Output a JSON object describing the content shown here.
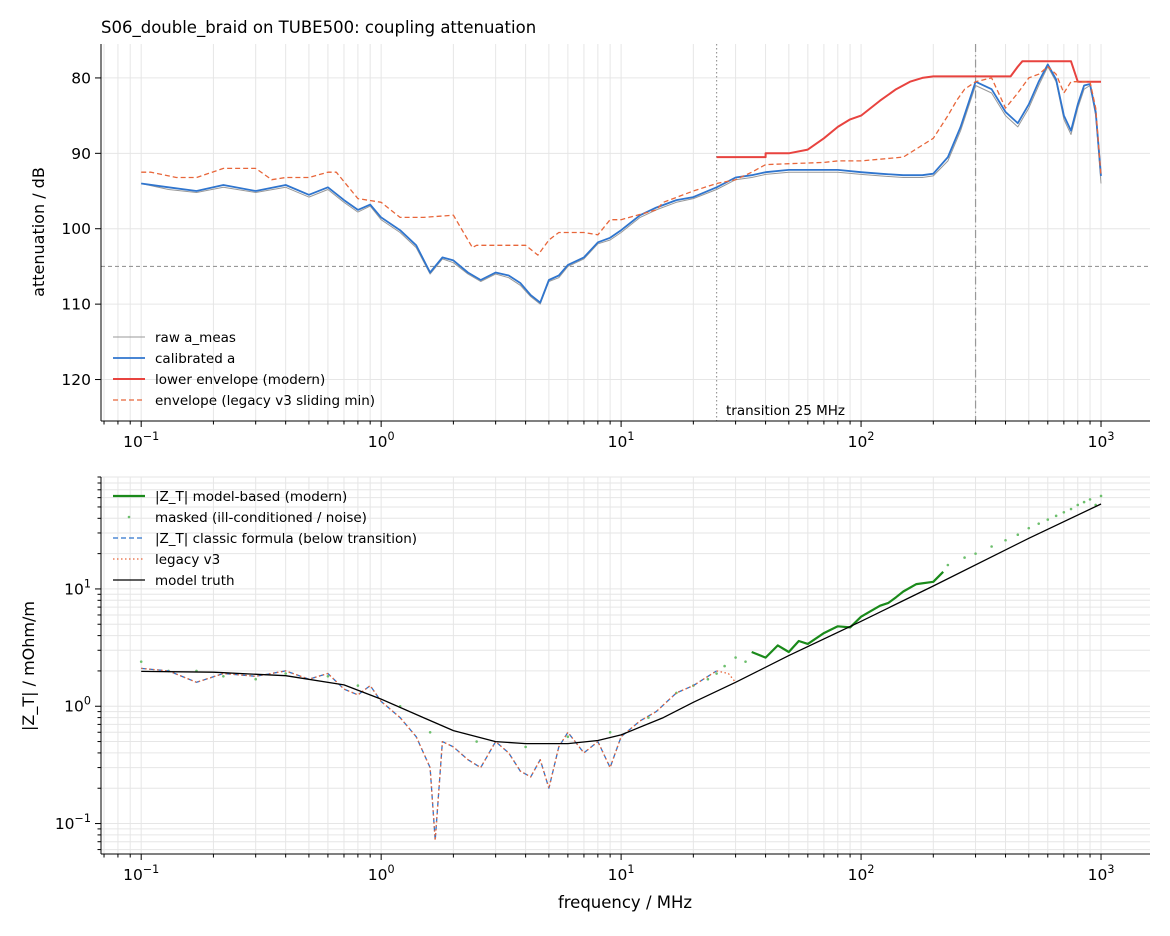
{
  "figure": {
    "title": "S06_double_braid on TUBE500: coupling attenuation",
    "xlabel": "frequency / MHz"
  },
  "chart_data": [
    {
      "type": "line",
      "title": "S06_double_braid on TUBE500: coupling attenuation",
      "xlabel": "",
      "ylabel": "attenuation / dB",
      "x_scale": "log",
      "xlim": [
        0.068,
        1600
      ],
      "ylim": [
        125.5,
        75.5
      ],
      "y_inverted": true,
      "x_ticks": [
        0.1,
        1,
        10,
        100,
        1000
      ],
      "x_tick_labels": [
        [
          "10",
          "−1"
        ],
        [
          "10",
          "0"
        ],
        [
          "10",
          "1"
        ],
        [
          "10",
          "2"
        ],
        [
          "10",
          "3"
        ]
      ],
      "y_ticks": [
        80,
        90,
        100,
        110,
        120
      ],
      "y_tick_labels": [
        "80",
        "90",
        "100",
        "110",
        "120"
      ],
      "grid": true,
      "legend_position": "lower-left",
      "reference_lines": [
        {
          "orientation": "horizontal",
          "value": 105,
          "style": "dashed",
          "color": "#999999"
        },
        {
          "orientation": "vertical",
          "value": 25,
          "style": "dotted",
          "color": "#999999",
          "label": "transition 25 MHz"
        },
        {
          "orientation": "vertical",
          "value": 300,
          "style": "dashdot",
          "color": "#999999"
        }
      ],
      "series": [
        {
          "name": "raw a_meas",
          "color": "#999999",
          "style": "solid",
          "width": 1,
          "x": [
            0.1,
            0.13,
            0.17,
            0.22,
            0.3,
            0.4,
            0.5,
            0.6,
            0.7,
            0.8,
            0.9,
            1.0,
            1.2,
            1.4,
            1.6,
            1.8,
            2.0,
            2.3,
            2.6,
            3.0,
            3.4,
            3.8,
            4.2,
            4.6,
            5.0,
            5.5,
            6.0,
            7.0,
            8.0,
            9.0,
            10,
            12,
            14,
            17,
            20,
            25,
            30,
            35,
            40,
            50,
            60,
            70,
            80,
            100,
            120,
            150,
            180,
            200,
            230,
            260,
            300,
            350,
            400,
            450,
            500,
            550,
            600,
            650,
            700,
            750,
            800,
            850,
            900,
            950,
            1000
          ],
          "y": [
            94.0,
            94.8,
            95.2,
            94.5,
            95.2,
            94.5,
            95.8,
            94.8,
            96.5,
            97.8,
            97.0,
            98.8,
            100.5,
            102.5,
            106.0,
            104.0,
            104.5,
            106.0,
            107.0,
            106.0,
            106.5,
            107.5,
            109.0,
            110.0,
            107.0,
            106.5,
            105.0,
            104.0,
            102.0,
            101.5,
            100.5,
            98.5,
            97.5,
            96.5,
            96.0,
            94.8,
            93.5,
            93.2,
            92.8,
            92.5,
            92.5,
            92.5,
            92.5,
            92.8,
            93.0,
            93.2,
            93.2,
            93.0,
            91.0,
            87.0,
            81.0,
            82.0,
            85.0,
            86.5,
            84.0,
            81.0,
            78.5,
            80.5,
            85.5,
            87.5,
            84.0,
            81.5,
            81.0,
            85.0,
            94.0
          ]
        },
        {
          "name": "calibrated a",
          "color": "#2f75ce",
          "style": "solid",
          "width": 1.8,
          "x": [
            0.1,
            0.13,
            0.17,
            0.22,
            0.3,
            0.4,
            0.5,
            0.6,
            0.7,
            0.8,
            0.9,
            1.0,
            1.2,
            1.4,
            1.6,
            1.8,
            2.0,
            2.3,
            2.6,
            3.0,
            3.4,
            3.8,
            4.2,
            4.6,
            5.0,
            5.5,
            6.0,
            7.0,
            8.0,
            9.0,
            10,
            12,
            14,
            17,
            20,
            25,
            30,
            35,
            40,
            50,
            60,
            70,
            80,
            100,
            120,
            150,
            180,
            200,
            230,
            260,
            300,
            350,
            400,
            450,
            500,
            550,
            600,
            650,
            700,
            750,
            800,
            850,
            900,
            950,
            1000
          ],
          "y": [
            94.0,
            94.5,
            95.0,
            94.2,
            95.0,
            94.2,
            95.5,
            94.5,
            96.2,
            97.5,
            96.8,
            98.5,
            100.2,
            102.2,
            105.8,
            103.8,
            104.2,
            105.8,
            106.8,
            105.8,
            106.2,
            107.2,
            108.8,
            109.8,
            106.8,
            106.2,
            104.8,
            103.8,
            101.8,
            101.2,
            100.2,
            98.2,
            97.2,
            96.2,
            95.8,
            94.5,
            93.2,
            92.9,
            92.5,
            92.2,
            92.2,
            92.2,
            92.2,
            92.5,
            92.7,
            92.9,
            92.9,
            92.7,
            90.5,
            86.5,
            80.5,
            81.5,
            84.5,
            86.0,
            83.5,
            80.5,
            78.2,
            80.2,
            85.0,
            87.0,
            83.5,
            81.0,
            80.8,
            84.5,
            93.0
          ]
        },
        {
          "name": "lower envelope (modern)",
          "color": "#e8433f",
          "style": "solid",
          "width": 2,
          "x": [
            25,
            40,
            40,
            50,
            60,
            70,
            80,
            90,
            100,
            120,
            140,
            160,
            180,
            200,
            300,
            420,
            450,
            470,
            500,
            550,
            600,
            700,
            750,
            800,
            1000
          ],
          "y": [
            90.5,
            90.5,
            90.0,
            90.0,
            89.5,
            88.0,
            86.5,
            85.5,
            85.0,
            83.0,
            81.5,
            80.5,
            80.0,
            79.8,
            79.8,
            79.8,
            78.5,
            77.8,
            77.8,
            77.8,
            77.8,
            77.8,
            77.8,
            80.5,
            80.5
          ]
        },
        {
          "name": "envelope (legacy v3 sliding min)",
          "color": "#e8663a",
          "style": "dashed",
          "width": 1.3,
          "x": [
            0.1,
            0.11,
            0.14,
            0.17,
            0.22,
            0.3,
            0.35,
            0.4,
            0.5,
            0.6,
            0.65,
            0.8,
            1.0,
            1.2,
            1.3,
            1.5,
            2.0,
            2.4,
            2.5,
            3.0,
            4.0,
            4.5,
            5.0,
            5.5,
            7.0,
            8.0,
            9.0,
            10,
            14,
            15,
            20,
            25,
            30,
            35,
            40,
            70,
            80,
            100,
            150,
            200,
            230,
            250,
            270,
            300,
            350,
            400,
            450,
            500,
            550,
            600,
            650,
            700,
            750,
            800,
            900,
            950,
            1000
          ],
          "y": [
            92.5,
            92.5,
            93.2,
            93.2,
            92.0,
            92.0,
            93.5,
            93.2,
            93.2,
            92.5,
            92.5,
            96.0,
            96.5,
            98.5,
            98.5,
            98.5,
            98.2,
            102.5,
            102.2,
            102.2,
            102.2,
            103.5,
            101.5,
            100.5,
            100.5,
            100.8,
            98.8,
            98.8,
            97.5,
            96.5,
            95.0,
            94.0,
            93.5,
            92.5,
            91.5,
            91.2,
            91.0,
            91.0,
            90.5,
            88.0,
            85.0,
            83.0,
            81.5,
            80.5,
            80.0,
            84.0,
            82.0,
            80.0,
            79.5,
            78.5,
            79.5,
            82.0,
            80.5,
            80.5,
            80.5,
            84.0,
            93.0
          ]
        }
      ]
    },
    {
      "type": "line",
      "title": "",
      "xlabel": "frequency / MHz",
      "ylabel": "|Z_T| / mOhm/m",
      "x_scale": "log",
      "y_scale": "log",
      "xlim": [
        0.068,
        1600
      ],
      "ylim": [
        0.055,
        90
      ],
      "x_ticks": [
        0.1,
        1,
        10,
        100,
        1000
      ],
      "x_tick_labels": [
        [
          "10",
          "−1"
        ],
        [
          "10",
          "0"
        ],
        [
          "10",
          "1"
        ],
        [
          "10",
          "2"
        ],
        [
          "10",
          "3"
        ]
      ],
      "y_ticks": [
        0.1,
        1,
        10
      ],
      "y_tick_labels": [
        [
          "10",
          "−1"
        ],
        [
          "10",
          "0"
        ],
        [
          "10",
          "1"
        ]
      ],
      "grid": true,
      "legend_position": "top-left",
      "series": [
        {
          "name": "|Z_T| model-based (modern)",
          "color": "#1a8a1a",
          "style": "solid",
          "width": 2.2,
          "x": [
            35,
            40,
            45,
            50,
            55,
            60,
            70,
            80,
            90,
            100,
            110,
            120,
            130,
            140,
            150,
            170,
            200,
            220
          ],
          "y": [
            2.9,
            2.6,
            3.3,
            2.9,
            3.6,
            3.4,
            4.2,
            4.8,
            4.7,
            5.8,
            6.5,
            7.2,
            7.6,
            8.5,
            9.5,
            11.0,
            11.5,
            14.0
          ]
        },
        {
          "name": "masked (ill-conditioned / noise)",
          "color": "#6dbf6d",
          "style": "dots",
          "width": 0,
          "x": [
            0.1,
            0.13,
            0.17,
            0.22,
            0.3,
            0.4,
            0.6,
            0.8,
            1.2,
            1.6,
            2.5,
            4.0,
            6.0,
            9.0,
            13,
            17,
            20,
            23,
            25,
            27,
            30,
            33,
            230,
            270,
            300,
            350,
            400,
            450,
            500,
            550,
            600,
            650,
            700,
            750,
            800,
            850,
            900,
            950,
            1000
          ],
          "y": [
            2.4,
            2.0,
            2.0,
            1.8,
            1.7,
            1.9,
            1.8,
            1.5,
            1.0,
            0.6,
            0.5,
            0.45,
            0.55,
            0.6,
            0.8,
            1.3,
            1.5,
            1.7,
            1.9,
            2.2,
            2.6,
            2.4,
            16.0,
            18.5,
            20.0,
            23.0,
            26.0,
            29.0,
            33.0,
            36.0,
            39.0,
            42.0,
            45.0,
            48.0,
            52.0,
            55.0,
            58.0,
            52.0,
            62.0
          ]
        },
        {
          "name": "|Z_T| classic formula (below transition)",
          "color": "#2f75ce",
          "style": "dashed",
          "width": 1.3,
          "x": [
            0.1,
            0.13,
            0.17,
            0.22,
            0.3,
            0.4,
            0.5,
            0.6,
            0.7,
            0.8,
            0.9,
            1.0,
            1.2,
            1.4,
            1.6,
            1.68,
            1.8,
            2.0,
            2.3,
            2.6,
            3.0,
            3.4,
            3.8,
            4.2,
            4.6,
            5.0,
            5.5,
            6.0,
            7.0,
            8.0,
            9.0,
            10,
            12,
            14,
            17,
            20,
            25
          ],
          "y": [
            2.1,
            2.0,
            1.6,
            1.9,
            1.8,
            2.0,
            1.7,
            1.9,
            1.4,
            1.25,
            1.5,
            1.1,
            0.8,
            0.55,
            0.3,
            0.072,
            0.5,
            0.45,
            0.35,
            0.3,
            0.5,
            0.4,
            0.28,
            0.25,
            0.35,
            0.2,
            0.45,
            0.6,
            0.4,
            0.5,
            0.3,
            0.55,
            0.75,
            0.9,
            1.3,
            1.5,
            2.0
          ]
        },
        {
          "name": "legacy v3",
          "color": "#e8663a",
          "style": "dotted",
          "width": 1.3,
          "x": [
            0.1,
            0.13,
            0.17,
            0.22,
            0.3,
            0.4,
            0.5,
            0.6,
            0.7,
            0.8,
            0.9,
            1.0,
            1.2,
            1.4,
            1.6,
            1.68,
            1.8,
            2.0,
            2.3,
            2.6,
            3.0,
            3.4,
            3.8,
            4.2,
            4.6,
            5.0,
            5.5,
            6.0,
            7.0,
            8.0,
            9.0,
            10,
            12,
            14,
            17,
            20,
            25,
            28,
            30
          ],
          "y": [
            2.1,
            2.0,
            1.6,
            1.9,
            1.8,
            2.0,
            1.7,
            1.9,
            1.4,
            1.25,
            1.5,
            1.1,
            0.8,
            0.55,
            0.3,
            0.072,
            0.5,
            0.45,
            0.35,
            0.3,
            0.5,
            0.4,
            0.28,
            0.25,
            0.35,
            0.2,
            0.45,
            0.6,
            0.4,
            0.5,
            0.3,
            0.55,
            0.75,
            0.9,
            1.3,
            1.5,
            2.0,
            1.9,
            1.6
          ]
        },
        {
          "name": "model truth",
          "color": "#000000",
          "style": "solid",
          "width": 1.3,
          "x": [
            0.1,
            0.2,
            0.4,
            0.7,
            1.0,
            1.5,
            2.0,
            3.0,
            4.0,
            6.0,
            8.0,
            10,
            15,
            20,
            30,
            50,
            100,
            200,
            500,
            1000
          ],
          "y": [
            1.98,
            1.95,
            1.82,
            1.52,
            1.15,
            0.8,
            0.62,
            0.5,
            0.48,
            0.48,
            0.51,
            0.57,
            0.8,
            1.08,
            1.6,
            2.7,
            5.3,
            10.6,
            27,
            53
          ]
        }
      ]
    }
  ]
}
